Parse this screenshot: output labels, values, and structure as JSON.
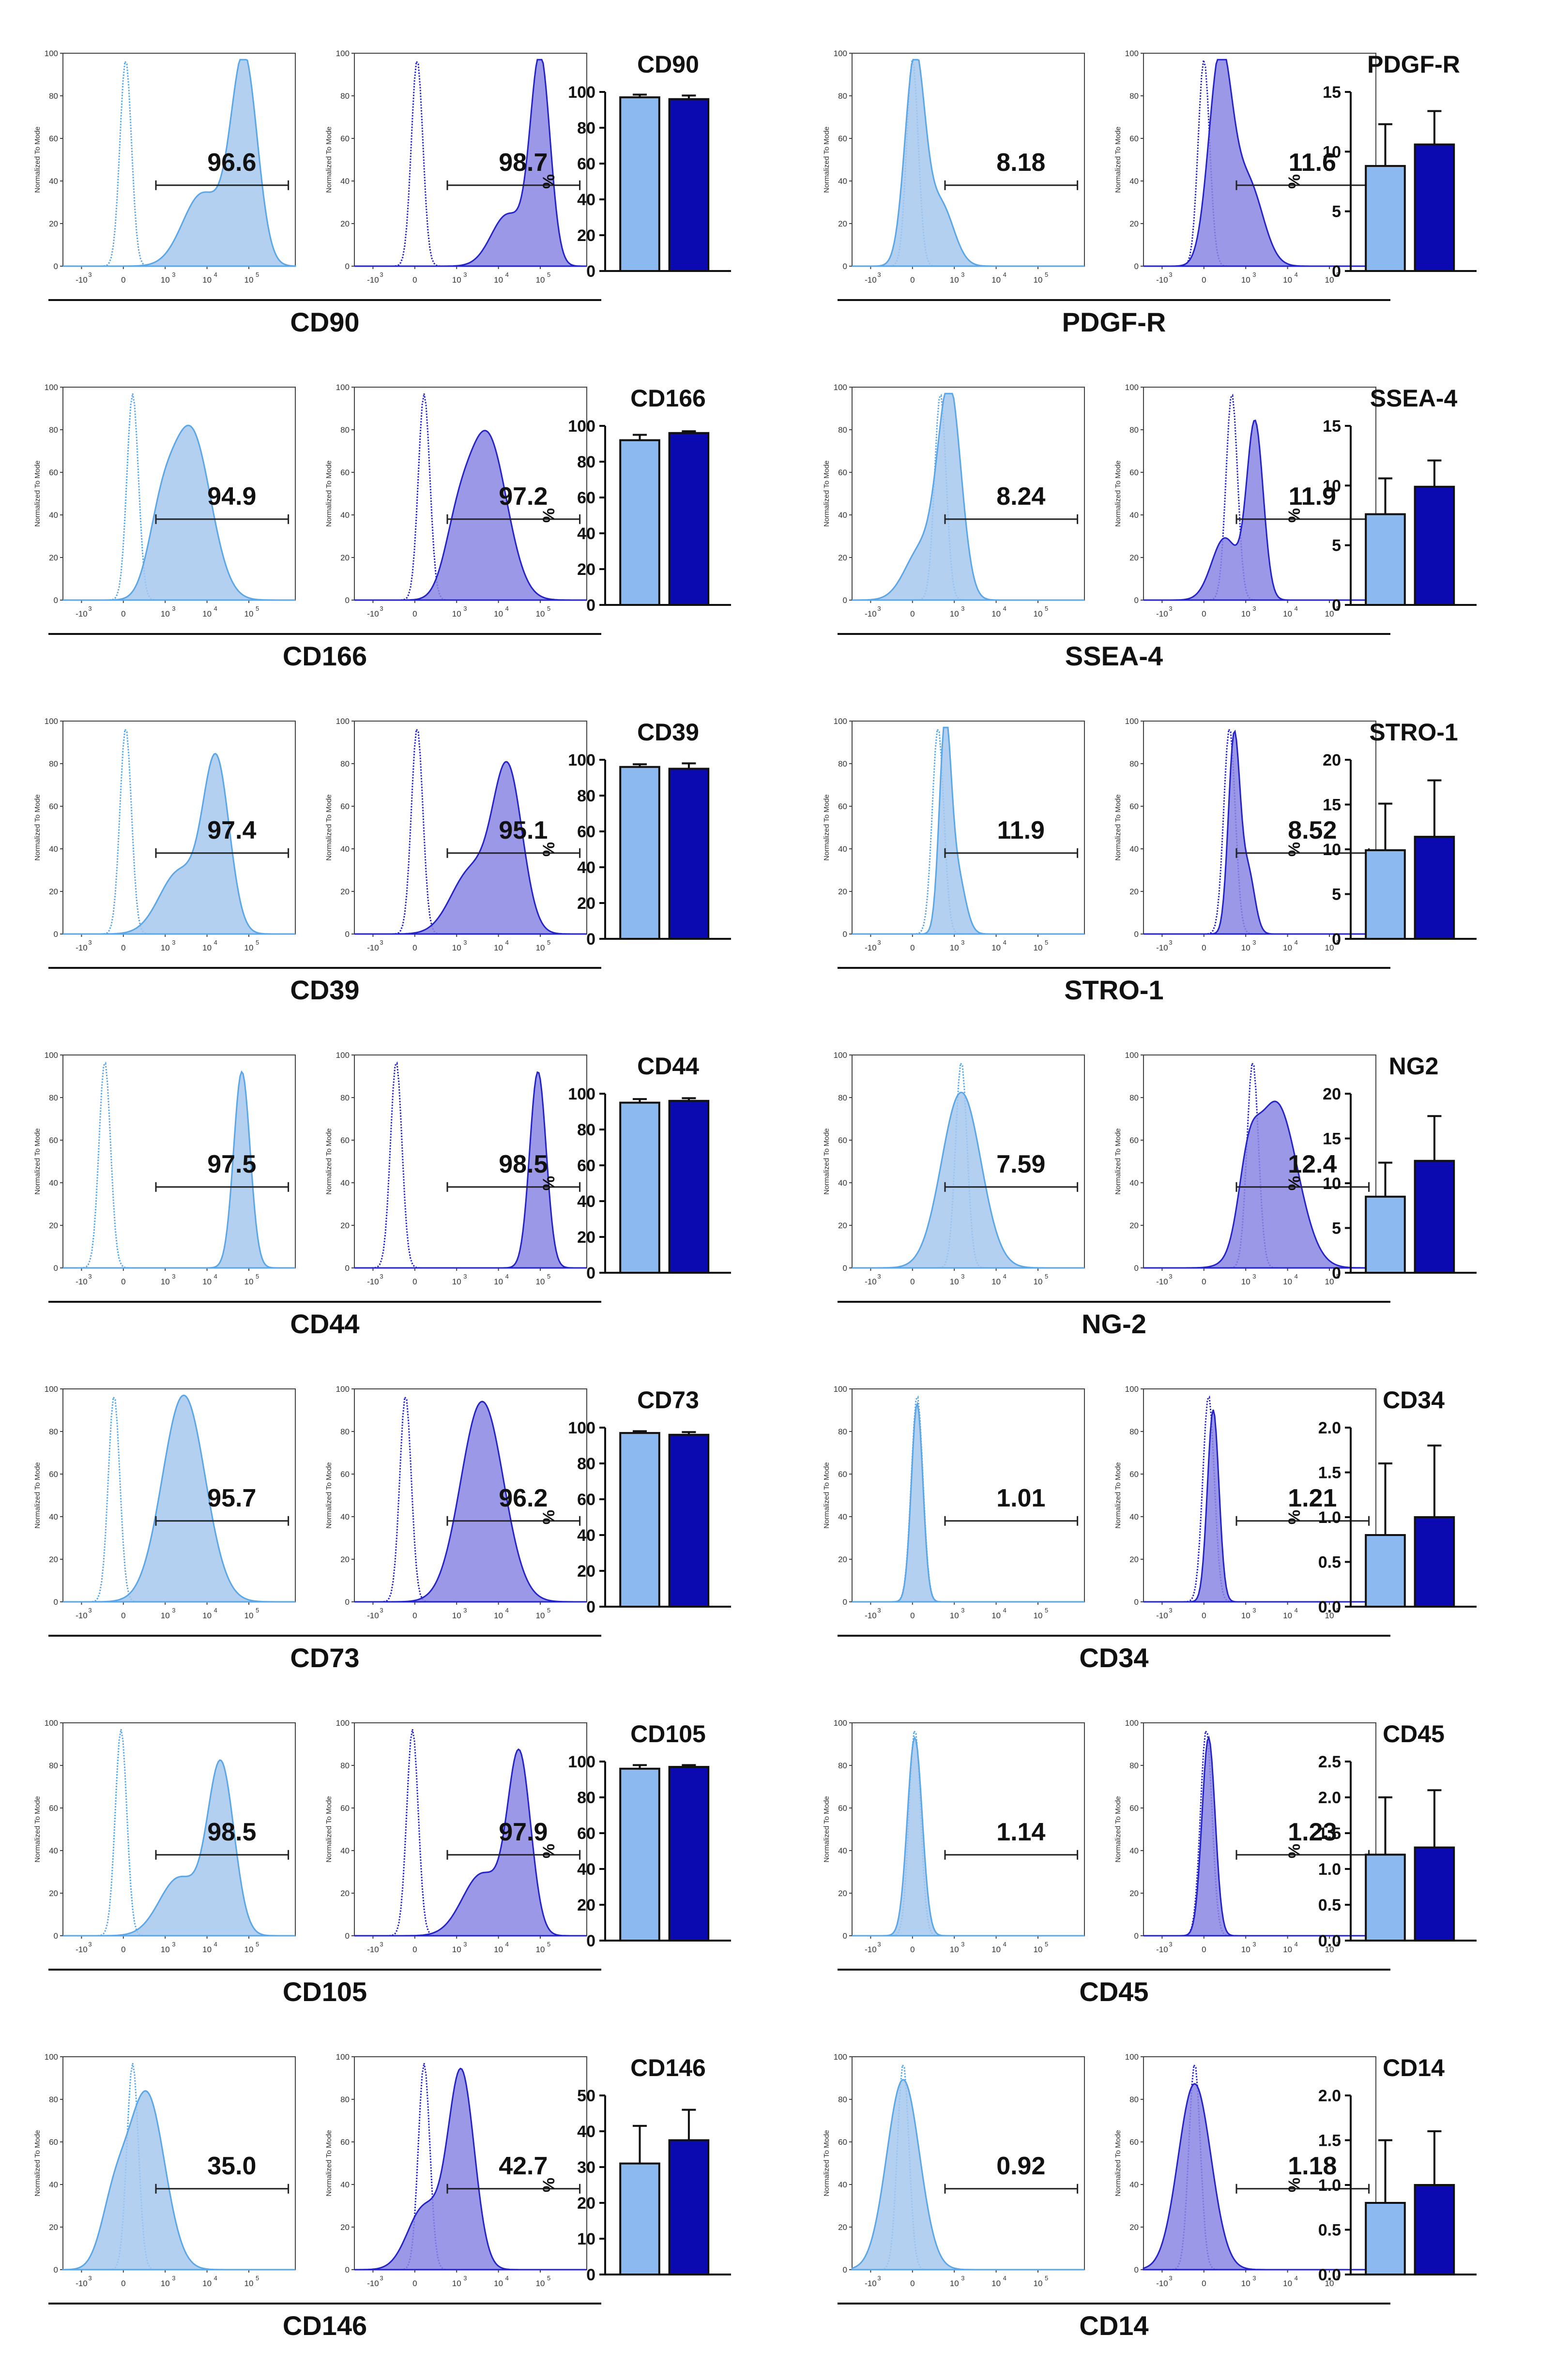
{
  "histogram_axis": {
    "ylabel": "Normalized To Mode",
    "yticks": [
      "0",
      "20",
      "40",
      "60",
      "80",
      "100"
    ],
    "xticks": [
      "-10",
      "0",
      "10",
      "10",
      "10",
      "10"
    ],
    "xtick_exponents": [
      "3",
      "",
      "3",
      "4",
      "5",
      ""
    ]
  },
  "colors": {
    "light_fill": "#a6c8ef",
    "light_line": "#5aa6e6",
    "dark_fill": "#8b86e4",
    "dark_line": "#2323c8",
    "bar_light": "#8bb9f0",
    "bar_dark": "#0a0ab0"
  },
  "panels": [
    {
      "name": "CD90",
      "hist_label": "CD90",
      "bar_title": "CD90",
      "gate_values": [
        "96.6",
        "98.7"
      ],
      "chart_data": {
        "type": "bar",
        "categories": [
          "",
          ""
        ],
        "values": [
          97,
          96
        ],
        "errors": [
          1.5,
          2
        ],
        "ylim": [
          0,
          100
        ],
        "yticks": [
          "0",
          "20",
          "40",
          "60",
          "80",
          "100"
        ],
        "ylabel": "%",
        "title": "CD90"
      }
    },
    {
      "name": "PDGF-R",
      "hist_label": "PDGF-R",
      "bar_title": "PDGF-R",
      "gate_values": [
        "8.18",
        "11.6"
      ],
      "chart_data": {
        "type": "bar",
        "categories": [
          "",
          ""
        ],
        "values": [
          8.8,
          10.6
        ],
        "errors": [
          3.5,
          2.8
        ],
        "ylim": [
          0,
          15
        ],
        "yticks": [
          "0",
          "5",
          "10",
          "15"
        ],
        "ylabel": "%",
        "title": "PDGF-R"
      }
    },
    {
      "name": "CD166",
      "hist_label": "CD166",
      "bar_title": "CD166",
      "gate_values": [
        "94.9",
        "97.2"
      ],
      "chart_data": {
        "type": "bar",
        "categories": [
          "",
          ""
        ],
        "values": [
          92,
          96
        ],
        "errors": [
          3,
          1
        ],
        "ylim": [
          0,
          100
        ],
        "yticks": [
          "0",
          "20",
          "40",
          "60",
          "80",
          "100"
        ],
        "ylabel": "%",
        "title": "CD166"
      }
    },
    {
      "name": "SSEA-4",
      "hist_label": "SSEA-4",
      "bar_title": "SSEA-4",
      "gate_values": [
        "8.24",
        "11.9"
      ],
      "chart_data": {
        "type": "bar",
        "categories": [
          "",
          ""
        ],
        "values": [
          7.6,
          9.9
        ],
        "errors": [
          3,
          2.2
        ],
        "ylim": [
          0,
          15
        ],
        "yticks": [
          "0",
          "5",
          "10",
          "15"
        ],
        "ylabel": "%",
        "title": "SSEA-4"
      }
    },
    {
      "name": "CD39",
      "hist_label": "CD39",
      "bar_title": "CD39",
      "gate_values": [
        "97.4",
        "95.1"
      ],
      "chart_data": {
        "type": "bar",
        "categories": [
          "",
          ""
        ],
        "values": [
          96,
          95
        ],
        "errors": [
          1.5,
          3
        ],
        "ylim": [
          0,
          100
        ],
        "yticks": [
          "0",
          "20",
          "40",
          "60",
          "80",
          "100"
        ],
        "ylabel": "%",
        "title": "CD39"
      }
    },
    {
      "name": "STRO-1",
      "hist_label": "STRO-1",
      "bar_title": "STRO-1",
      "gate_values": [
        "11.9",
        "8.52"
      ],
      "chart_data": {
        "type": "bar",
        "categories": [
          "",
          ""
        ],
        "values": [
          9.9,
          11.4
        ],
        "errors": [
          5.2,
          6.3
        ],
        "ylim": [
          0,
          20
        ],
        "yticks": [
          "0",
          "5",
          "10",
          "15",
          "20"
        ],
        "ylabel": "%",
        "title": "STRO-1"
      }
    },
    {
      "name": "CD44",
      "hist_label": "CD44",
      "bar_title": "CD44",
      "gate_values": [
        "97.5",
        "98.5"
      ],
      "chart_data": {
        "type": "bar",
        "categories": [
          "",
          ""
        ],
        "values": [
          95,
          96
        ],
        "errors": [
          2,
          1.5
        ],
        "ylim": [
          0,
          100
        ],
        "yticks": [
          "0",
          "20",
          "40",
          "60",
          "80",
          "100"
        ],
        "ylabel": "%",
        "title": "CD44"
      }
    },
    {
      "name": "NG2",
      "hist_label": "NG-2",
      "bar_title": "NG2",
      "gate_values": [
        "7.59",
        "12.4"
      ],
      "chart_data": {
        "type": "bar",
        "categories": [
          "",
          ""
        ],
        "values": [
          8.5,
          12.5
        ],
        "errors": [
          3.8,
          5
        ],
        "ylim": [
          0,
          20
        ],
        "yticks": [
          "0",
          "5",
          "10",
          "15",
          "20"
        ],
        "ylabel": "%",
        "title": "NG2"
      }
    },
    {
      "name": "CD73",
      "hist_label": "CD73",
      "bar_title": "CD73",
      "gate_values": [
        "95.7",
        "96.2"
      ],
      "chart_data": {
        "type": "bar",
        "categories": [
          "",
          ""
        ],
        "values": [
          97,
          96
        ],
        "errors": [
          1,
          1.5
        ],
        "ylim": [
          0,
          100
        ],
        "yticks": [
          "0",
          "20",
          "40",
          "60",
          "80",
          "100"
        ],
        "ylabel": "%",
        "title": "CD73"
      }
    },
    {
      "name": "CD34",
      "hist_label": "CD34",
      "bar_title": "CD34",
      "gate_values": [
        "1.01",
        "1.21"
      ],
      "chart_data": {
        "type": "bar",
        "categories": [
          "",
          ""
        ],
        "values": [
          0.8,
          1.0
        ],
        "errors": [
          0.8,
          0.8
        ],
        "ylim": [
          0,
          2
        ],
        "yticks": [
          "0.0",
          "0.5",
          "1.0",
          "1.5",
          "2.0"
        ],
        "ylabel": "%",
        "title": "CD34"
      }
    },
    {
      "name": "CD105",
      "hist_label": "CD105",
      "bar_title": "CD105",
      "gate_values": [
        "98.5",
        "97.9"
      ],
      "chart_data": {
        "type": "bar",
        "categories": [
          "",
          ""
        ],
        "values": [
          96,
          97
        ],
        "errors": [
          2,
          1
        ],
        "ylim": [
          0,
          100
        ],
        "yticks": [
          "0",
          "20",
          "40",
          "60",
          "80",
          "100"
        ],
        "ylabel": "%",
        "title": "CD105"
      }
    },
    {
      "name": "CD45",
      "hist_label": "CD45",
      "bar_title": "CD45",
      "gate_values": [
        "1.14",
        "1.23"
      ],
      "chart_data": {
        "type": "bar",
        "categories": [
          "",
          ""
        ],
        "values": [
          1.2,
          1.3
        ],
        "errors": [
          0.8,
          0.8
        ],
        "ylim": [
          0,
          2.5
        ],
        "yticks": [
          "0.0",
          "0.5",
          "1.0",
          "1.5",
          "2.0",
          "2.5"
        ],
        "ylabel": "%",
        "title": "CD45"
      }
    },
    {
      "name": "CD146",
      "hist_label": "CD146",
      "bar_title": "CD146",
      "gate_values": [
        "35.0",
        "42.7"
      ],
      "chart_data": {
        "type": "bar",
        "categories": [
          "",
          ""
        ],
        "values": [
          31,
          37.5
        ],
        "errors": [
          10.5,
          8.5
        ],
        "ylim": [
          0,
          50
        ],
        "yticks": [
          "0",
          "10",
          "20",
          "30",
          "40",
          "50"
        ],
        "ylabel": "%",
        "title": "CD146"
      }
    },
    {
      "name": "CD14",
      "hist_label": "CD14",
      "bar_title": "CD14",
      "gate_values": [
        "0.92",
        "1.18"
      ],
      "chart_data": {
        "type": "bar",
        "categories": [
          "",
          ""
        ],
        "values": [
          0.8,
          1.0
        ],
        "errors": [
          0.7,
          0.6
        ],
        "ylim": [
          0,
          2
        ],
        "yticks": [
          "0.0",
          "0.5",
          "1.0",
          "1.5",
          "2.0"
        ],
        "ylabel": "%",
        "title": "CD14"
      }
    }
  ]
}
